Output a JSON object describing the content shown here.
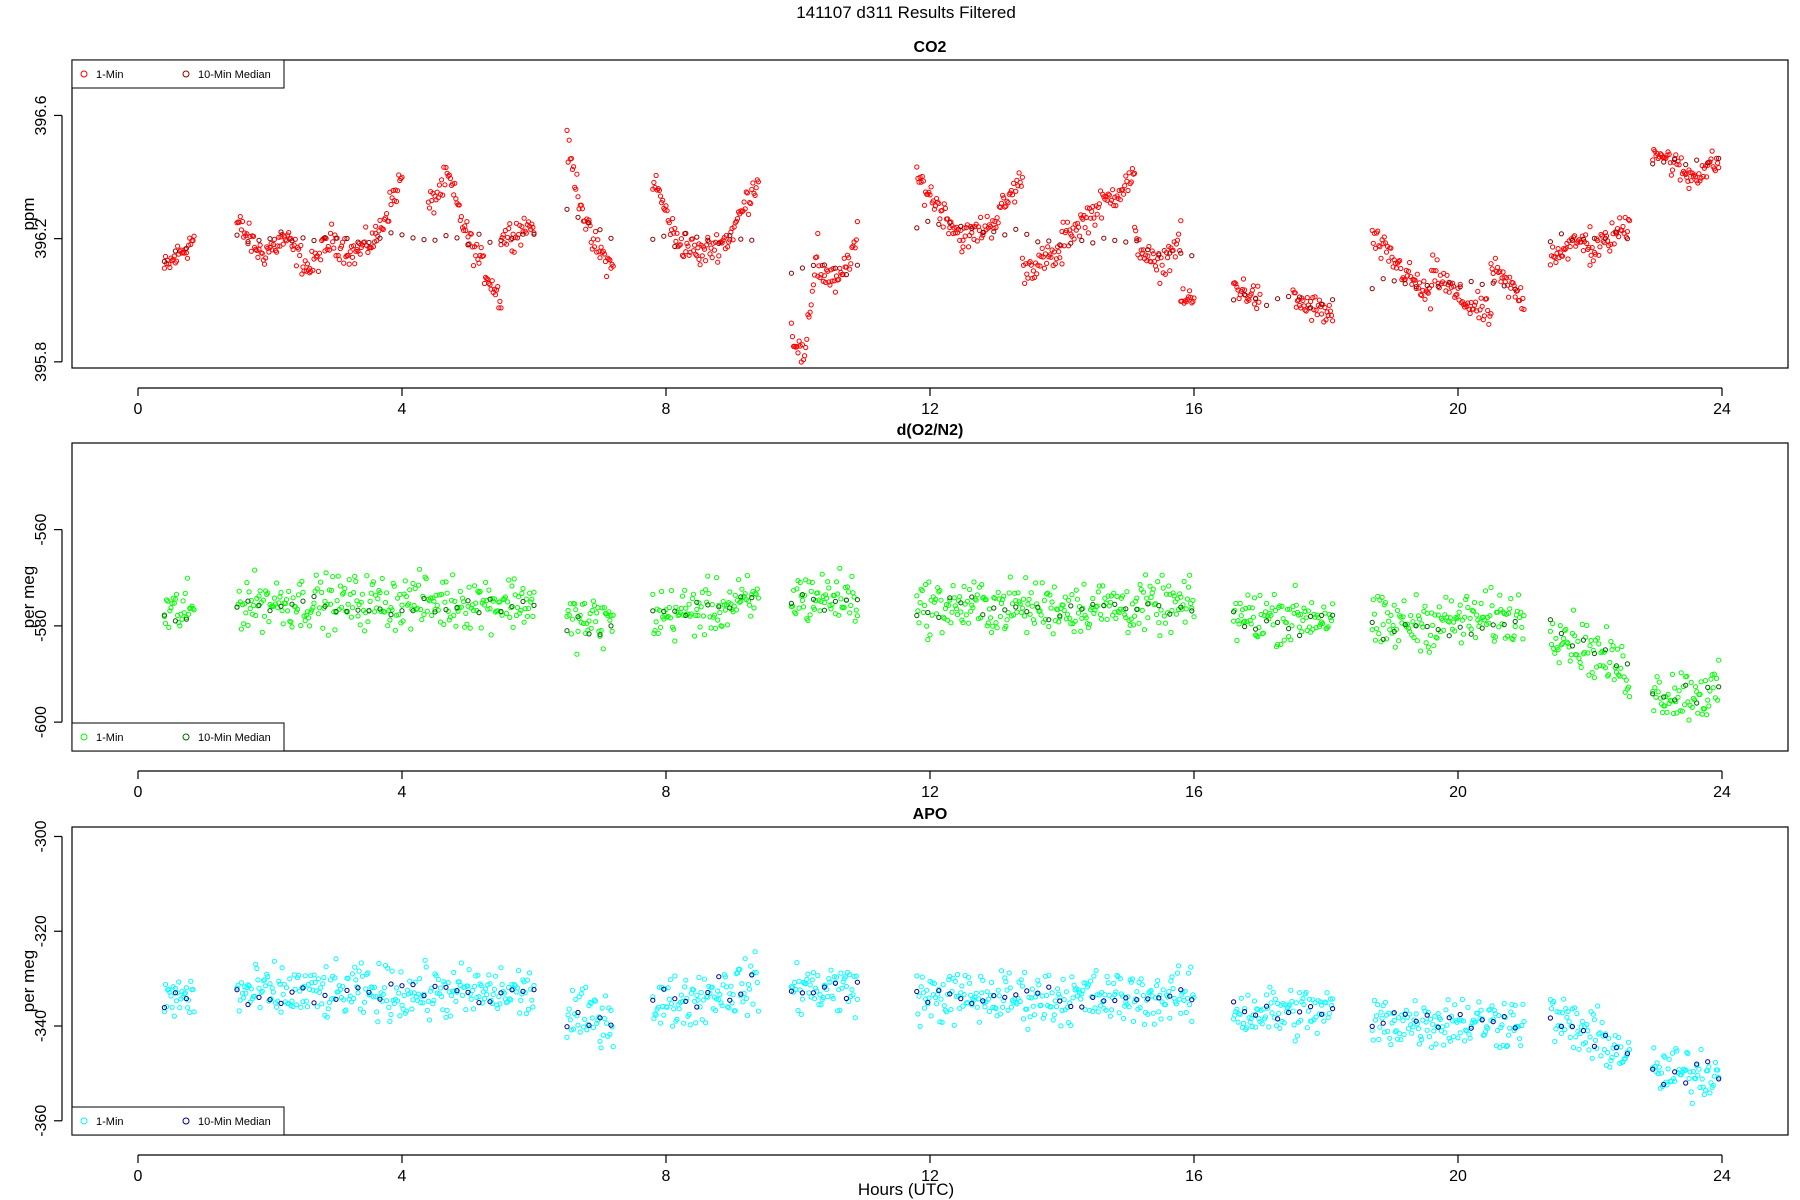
{
  "suptitle": "141107   d311   Results Filtered",
  "xlabel": "Hours (UTC)",
  "chart_data": [
    {
      "type": "scatter",
      "title": "CO2",
      "ylabel": "ppm",
      "xlim": [
        -1,
        25
      ],
      "ylim": [
        395.78,
        396.78
      ],
      "xticks": [
        0,
        4,
        8,
        12,
        16,
        20,
        24
      ],
      "yticks": [
        395.8,
        396.2,
        396.6
      ],
      "legend": [
        "1-Min",
        "10-Min Median"
      ],
      "legend_position": "top-left",
      "colors": {
        "one_min": "#ff0000",
        "median": "#8b0000"
      },
      "series": [
        {
          "name": "1-Min",
          "segments": [
            [
              0.4,
              0.85,
              [
                396.1,
                396.2
              ]
            ],
            [
              1.5,
              2.6,
              [
                396.25,
                396.15,
                396.2,
                396.1
              ]
            ],
            [
              2.6,
              3.6,
              [
                396.1,
                396.2,
                396.15,
                396.2
              ]
            ],
            [
              3.6,
              4.0,
              [
                396.2,
                396.4
              ]
            ],
            [
              4.4,
              5.0,
              [
                396.3,
                396.4,
                396.2
              ]
            ],
            [
              5.0,
              5.5,
              [
                396.2,
                396.0
              ]
            ],
            [
              5.5,
              6.0,
              [
                396.2,
                396.25
              ]
            ],
            [
              6.5,
              7.2,
              [
                396.5,
                396.2,
                396.1
              ]
            ],
            [
              7.8,
              8.5,
              [
                396.4,
                396.2,
                396.15
              ]
            ],
            [
              8.5,
              9.4,
              [
                396.15,
                396.2,
                396.4
              ]
            ],
            [
              9.9,
              10.3,
              [
                395.9,
                395.8,
                396.2
              ]
            ],
            [
              10.3,
              10.9,
              [
                396.1,
                396.05,
                396.2
              ]
            ],
            [
              11.8,
              12.5,
              [
                396.4,
                396.3,
                396.2
              ]
            ],
            [
              12.5,
              13.4,
              [
                396.2,
                396.25,
                396.4
              ]
            ],
            [
              13.4,
              14.0,
              [
                396.1,
                396.15
              ]
            ],
            [
              14.0,
              15.1,
              [
                396.2,
                396.3,
                396.4
              ]
            ],
            [
              15.1,
              15.8,
              [
                396.2,
                396.1,
                396.2
              ]
            ],
            [
              15.8,
              16.0,
              [
                396.0
              ]
            ],
            [
              16.6,
              17.0,
              [
                396.05,
                396.0
              ]
            ],
            [
              17.5,
              18.1,
              [
                396.0,
                395.95
              ]
            ],
            [
              18.7,
              19.6,
              [
                396.2,
                396.1,
                396.0
              ]
            ],
            [
              19.6,
              20.5,
              [
                396.1,
                396.0,
                395.95
              ]
            ],
            [
              20.5,
              21.0,
              [
                396.1,
                396.0
              ]
            ],
            [
              21.4,
              22.0,
              [
                396.15,
                396.2
              ]
            ],
            [
              22.0,
              22.6,
              [
                396.15,
                396.25
              ]
            ],
            [
              22.95,
              23.5,
              [
                396.5,
                396.4
              ]
            ],
            [
              23.5,
              23.95,
              [
                396.4,
                396.45
              ]
            ]
          ]
        },
        {
          "name": "10-Min Median",
          "segments": [
            [
              0.4,
              0.85,
              [
                396.12,
                396.2
              ]
            ],
            [
              1.5,
              6.0,
              [
                396.2
              ]
            ],
            [
              6.5,
              7.2,
              [
                396.3,
                396.2
              ]
            ],
            [
              7.8,
              9.4,
              [
                396.2
              ]
            ],
            [
              9.9,
              10.9,
              [
                396.1
              ]
            ],
            [
              11.8,
              16.0,
              [
                396.25,
                396.15
              ]
            ],
            [
              16.6,
              18.1,
              [
                396.0
              ]
            ],
            [
              18.7,
              21.0,
              [
                396.05
              ]
            ],
            [
              21.4,
              22.6,
              [
                396.2
              ]
            ],
            [
              22.95,
              23.95,
              [
                396.45
              ]
            ]
          ]
        }
      ]
    },
    {
      "type": "scatter",
      "title": "d(O2/N2)",
      "ylabel": "per meg",
      "xlim": [
        -1,
        25
      ],
      "ylim": [
        -606,
        -542
      ],
      "xticks": [
        0,
        4,
        8,
        12,
        16,
        20,
        24
      ],
      "yticks": [
        -600,
        -580,
        -560
      ],
      "legend": [
        "1-Min",
        "10-Min Median"
      ],
      "legend_position": "bottom-left",
      "colors": {
        "one_min": "#00ff00",
        "median": "#006400"
      },
      "series": [
        {
          "name": "1-Min",
          "segments": [
            [
              0.4,
              0.85,
              [
                -577
              ]
            ],
            [
              1.5,
              6.0,
              [
                -575
              ]
            ],
            [
              6.5,
              7.2,
              [
                -579
              ]
            ],
            [
              7.8,
              9.4,
              [
                -578,
                -575
              ]
            ],
            [
              9.9,
              10.9,
              [
                -574
              ]
            ],
            [
              11.8,
              16.0,
              [
                -576
              ]
            ],
            [
              16.6,
              18.1,
              [
                -578
              ]
            ],
            [
              18.7,
              21.0,
              [
                -580,
                -578
              ]
            ],
            [
              21.4,
              22.6,
              [
                -580,
                -590
              ]
            ],
            [
              22.95,
              23.95,
              [
                -594
              ]
            ]
          ]
        },
        {
          "name": "10-Min Median",
          "segments": [
            [
              0.4,
              0.85,
              [
                -578
              ]
            ],
            [
              1.5,
              6.0,
              [
                -576
              ]
            ],
            [
              6.5,
              7.2,
              [
                -580
              ]
            ],
            [
              7.8,
              9.4,
              [
                -578,
                -575
              ]
            ],
            [
              9.9,
              10.9,
              [
                -575
              ]
            ],
            [
              11.8,
              16.0,
              [
                -576
              ]
            ],
            [
              16.6,
              18.1,
              [
                -579
              ]
            ],
            [
              18.7,
              21.0,
              [
                -581,
                -580
              ]
            ],
            [
              21.4,
              22.6,
              [
                -580,
                -590
              ]
            ],
            [
              22.95,
              23.95,
              [
                -594
              ]
            ]
          ]
        }
      ]
    },
    {
      "type": "scatter",
      "title": "APO",
      "ylabel": "per meg",
      "xlim": [
        -1,
        25
      ],
      "ylim": [
        -363,
        -298
      ],
      "xticks": [
        0,
        4,
        8,
        12,
        16,
        20,
        24
      ],
      "yticks": [
        -360,
        -340,
        -320,
        -300
      ],
      "legend": [
        "1-Min",
        "10-Min Median"
      ],
      "legend_position": "bottom-left",
      "colors": {
        "one_min": "#00ffff",
        "median": "#00008b"
      },
      "series": [
        {
          "name": "1-Min",
          "segments": [
            [
              0.4,
              0.85,
              [
                -334
              ]
            ],
            [
              1.5,
              6.0,
              [
                -333
              ]
            ],
            [
              6.5,
              7.2,
              [
                -338
              ]
            ],
            [
              7.8,
              9.4,
              [
                -336,
                -331
              ]
            ],
            [
              9.9,
              10.9,
              [
                -332
              ]
            ],
            [
              11.8,
              16.0,
              [
                -334
              ]
            ],
            [
              16.6,
              18.1,
              [
                -337
              ]
            ],
            [
              18.7,
              21.0,
              [
                -339
              ]
            ],
            [
              21.4,
              22.6,
              [
                -338,
                -346
              ]
            ],
            [
              22.95,
              23.95,
              [
                -350
              ]
            ]
          ]
        },
        {
          "name": "10-Min Median",
          "segments": [
            [
              0.4,
              0.85,
              [
                -334
              ]
            ],
            [
              1.5,
              6.0,
              [
                -333
              ]
            ],
            [
              6.5,
              7.2,
              [
                -338
              ]
            ],
            [
              7.8,
              9.4,
              [
                -336,
                -331
              ]
            ],
            [
              9.9,
              10.9,
              [
                -332
              ]
            ],
            [
              11.8,
              16.0,
              [
                -334
              ]
            ],
            [
              16.6,
              18.1,
              [
                -337
              ]
            ],
            [
              18.7,
              21.0,
              [
                -339
              ]
            ],
            [
              21.4,
              22.6,
              [
                -338,
                -346
              ]
            ],
            [
              22.95,
              23.95,
              [
                -350
              ]
            ]
          ]
        }
      ]
    }
  ]
}
